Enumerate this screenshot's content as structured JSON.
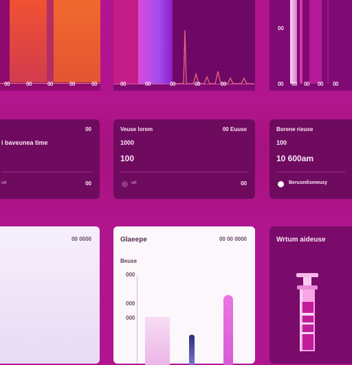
{
  "top_panels": {
    "left": {
      "ticks": [
        "00",
        "00",
        "00",
        "00",
        "00"
      ],
      "bar_colors": [
        "#f0542f",
        "#d13a55",
        "#ef6b36",
        "#c92c72"
      ]
    },
    "middle": {
      "ticks": [
        "00",
        "00",
        "00",
        "00",
        "00"
      ],
      "bar_colors": [
        "#c81d8a",
        "#b46cf5",
        "#9b1fc6",
        "#70096a"
      ]
    },
    "right": {
      "y_tick": "00",
      "ticks": [
        "00",
        "00",
        "00",
        "00",
        "00"
      ],
      "bar_colors": [
        "#f7c6ee",
        "#d22da0",
        "#b2179a"
      ]
    }
  },
  "cards": [
    {
      "title": "",
      "meta": "00",
      "sub": "i baveunea time",
      "value": "",
      "foot_left": "ue",
      "foot_right": "00"
    },
    {
      "title": "Veuse lorem",
      "meta": "00 Euuse",
      "sub": "",
      "value_top": "1000",
      "value": "100",
      "foot_left": "ue",
      "foot_right": "00"
    },
    {
      "title": "Borene rieuse",
      "meta": "",
      "value_top": "100",
      "value": "10 600am",
      "foot_right": "Berusedismeusy"
    }
  ],
  "bottom_cards": [
    {
      "title": "",
      "meta": "00 0000"
    },
    {
      "title": "Glaeepe",
      "meta": "00 00 0000",
      "y_label": "Beuse",
      "y_ticks": [
        "000",
        "000",
        "000"
      ]
    },
    {
      "title": "Wrtum aideuse"
    }
  ],
  "colors": {
    "background": "#b0148e",
    "card": "#6f0b5f",
    "panel": "#7e0a72",
    "light_card": "#fbf7fb"
  }
}
